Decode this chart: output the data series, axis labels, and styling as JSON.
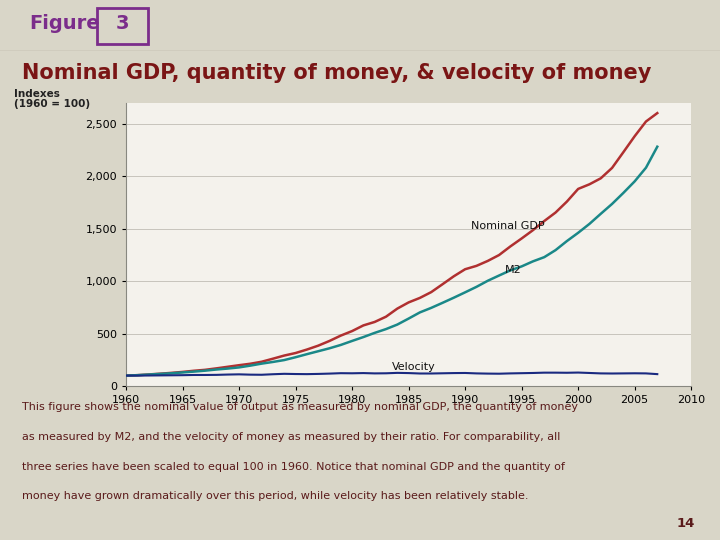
{
  "title": "Nominal GDP, quantity of money, & velocity of money",
  "figure_label": "Figure",
  "figure_number": "3",
  "ylabel_line1": "Indexes",
  "ylabel_line2": "(1960 = 100)",
  "xlim": [
    1960,
    2010
  ],
  "ylim": [
    0,
    2700
  ],
  "yticks": [
    0,
    500,
    1000,
    1500,
    2000,
    2500
  ],
  "xticks": [
    1960,
    1965,
    1970,
    1975,
    1980,
    1985,
    1990,
    1995,
    2000,
    2005,
    2010
  ],
  "bg_color": "#d9d6c8",
  "plot_bg_color": "#f4f2ec",
  "title_color": "#7a1515",
  "figure_label_color": "#7b2d8b",
  "figure_box_color": "#7b2d8b",
  "years": [
    1960,
    1961,
    1962,
    1963,
    1964,
    1965,
    1966,
    1967,
    1968,
    1969,
    1970,
    1971,
    1972,
    1973,
    1974,
    1975,
    1976,
    1977,
    1978,
    1979,
    1980,
    1981,
    1982,
    1983,
    1984,
    1985,
    1986,
    1987,
    1988,
    1989,
    1990,
    1991,
    1992,
    1993,
    1994,
    1995,
    1996,
    1997,
    1998,
    1999,
    2000,
    2001,
    2002,
    2003,
    2004,
    2005,
    2006,
    2007
  ],
  "nominal_gdp": [
    100,
    104,
    111,
    118,
    126,
    135,
    146,
    155,
    169,
    184,
    199,
    213,
    232,
    261,
    291,
    315,
    348,
    385,
    430,
    481,
    524,
    578,
    611,
    661,
    738,
    797,
    840,
    895,
    970,
    1046,
    1113,
    1145,
    1192,
    1248,
    1330,
    1406,
    1485,
    1572,
    1653,
    1757,
    1878,
    1922,
    1979,
    2078,
    2228,
    2380,
    2520,
    2600
  ],
  "m2": [
    100,
    104,
    110,
    116,
    122,
    130,
    138,
    147,
    158,
    167,
    178,
    195,
    214,
    230,
    248,
    275,
    304,
    332,
    360,
    392,
    430,
    467,
    507,
    543,
    586,
    643,
    702,
    745,
    793,
    842,
    893,
    945,
    1003,
    1053,
    1102,
    1140,
    1188,
    1228,
    1295,
    1381,
    1460,
    1545,
    1641,
    1735,
    1840,
    1950,
    2080,
    2280
  ],
  "velocity": [
    100,
    100,
    101,
    102,
    103,
    104,
    106,
    106,
    107,
    110,
    112,
    109,
    108,
    113,
    117,
    115,
    114,
    116,
    119,
    123,
    122,
    124,
    121,
    122,
    126,
    124,
    120,
    120,
    122,
    124,
    125,
    121,
    119,
    118,
    121,
    123,
    125,
    128,
    128,
    127,
    129,
    125,
    121,
    120,
    121,
    122,
    121,
    114
  ],
  "gdp_color": "#b03030",
  "m2_color": "#1a8888",
  "velocity_color": "#1a2a80",
  "annotation_color": "#111111",
  "footer_text_line1": "This figure shows the nominal value of output as measured by nominal GDP, the quantity of money",
  "footer_text_line2": "as measured by M2, and the velocity of money as measured by their ratio. For comparability, all",
  "footer_text_line3": "three series have been scaled to equal 100 in 1960. Notice that nominal GDP and the quantity of",
  "footer_text_line4": "money have grown dramatically over this period, while velocity has been relatively stable.",
  "page_number": "14",
  "footer_color": "#5a1a1a",
  "separator_color": "#b0a898"
}
